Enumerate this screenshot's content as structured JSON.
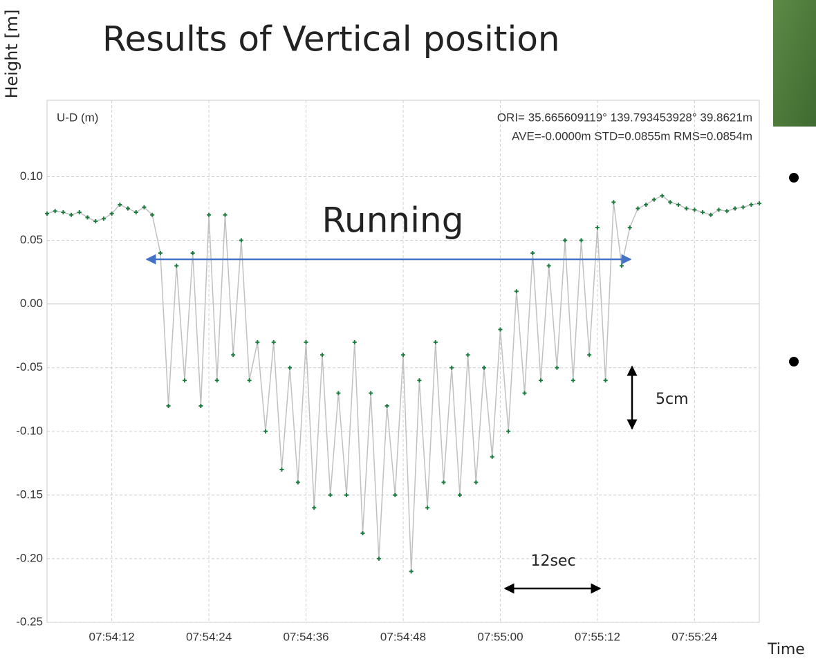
{
  "chart_data": {
    "type": "line",
    "title": "Results of Vertical position",
    "ylabel": "Height [m]",
    "xlabel": "Time",
    "panel_label": "U-D (m)",
    "origin_text": "ORI= 35.665609119° 139.793453928° 39.8621m",
    "stats_text": "AVE=-0.0000m STD=0.0855m RMS=0.0854m",
    "annotations": [
      "Running",
      "5cm",
      "12sec"
    ],
    "line_color": "#c0c0c0",
    "marker_color": "#1e7b3f",
    "grid": true,
    "x": [
      "07:54:04",
      "07:54:05",
      "07:54:06",
      "07:54:07",
      "07:54:08",
      "07:54:09",
      "07:54:10",
      "07:54:11",
      "07:54:12",
      "07:54:13",
      "07:54:14",
      "07:54:15",
      "07:54:16",
      "07:54:17",
      "07:54:18",
      "07:54:19",
      "07:54:20",
      "07:54:21",
      "07:54:22",
      "07:54:23",
      "07:54:24",
      "07:54:25",
      "07:54:26",
      "07:54:27",
      "07:54:28",
      "07:54:29",
      "07:54:30",
      "07:54:31",
      "07:54:32",
      "07:54:33",
      "07:54:34",
      "07:54:35",
      "07:54:36",
      "07:54:37",
      "07:54:38",
      "07:54:39",
      "07:54:40",
      "07:54:41",
      "07:54:42",
      "07:54:43",
      "07:54:44",
      "07:54:45",
      "07:54:46",
      "07:54:47",
      "07:54:48",
      "07:54:49",
      "07:54:50",
      "07:54:51",
      "07:54:52",
      "07:54:53",
      "07:54:54",
      "07:54:55",
      "07:54:56",
      "07:54:57",
      "07:54:58",
      "07:54:59",
      "07:55:00",
      "07:55:01",
      "07:55:02",
      "07:55:03",
      "07:55:04",
      "07:55:05",
      "07:55:06",
      "07:55:07",
      "07:55:08",
      "07:55:09",
      "07:55:10",
      "07:55:11",
      "07:55:12",
      "07:55:13",
      "07:55:14",
      "07:55:15",
      "07:55:16",
      "07:55:17",
      "07:55:18",
      "07:55:19",
      "07:55:20",
      "07:55:21",
      "07:55:22",
      "07:55:23",
      "07:55:24",
      "07:55:25",
      "07:55:26",
      "07:55:27",
      "07:55:28",
      "07:55:29",
      "07:55:30",
      "07:55:31",
      "07:55:32"
    ],
    "values": [
      0.071,
      0.073,
      0.072,
      0.07,
      0.072,
      0.068,
      0.065,
      0.067,
      0.071,
      0.078,
      0.075,
      0.072,
      0.076,
      0.07,
      0.04,
      -0.08,
      0.03,
      -0.06,
      0.04,
      -0.08,
      0.07,
      -0.06,
      0.07,
      -0.04,
      0.05,
      -0.06,
      -0.03,
      -0.1,
      -0.03,
      -0.13,
      -0.05,
      -0.14,
      -0.03,
      -0.16,
      -0.04,
      -0.15,
      -0.07,
      -0.15,
      -0.03,
      -0.18,
      -0.07,
      -0.2,
      -0.08,
      -0.15,
      -0.04,
      -0.21,
      -0.06,
      -0.16,
      -0.03,
      -0.14,
      -0.05,
      -0.15,
      -0.04,
      -0.14,
      -0.05,
      -0.12,
      -0.02,
      -0.1,
      0.01,
      -0.07,
      0.04,
      -0.06,
      0.03,
      -0.05,
      0.05,
      -0.06,
      0.05,
      -0.04,
      0.06,
      -0.06,
      0.08,
      0.03,
      0.06,
      0.075,
      0.078,
      0.082,
      0.085,
      0.08,
      0.078,
      0.075,
      0.074,
      0.072,
      0.07,
      0.074,
      0.073,
      0.075,
      0.076,
      0.078,
      0.079
    ],
    "xlim": [
      "07:54:04",
      "07:55:32"
    ],
    "xticks": [
      "07:54:12",
      "07:54:24",
      "07:54:36",
      "07:54:48",
      "07:55:00",
      "07:55:12",
      "07:55:24"
    ],
    "ylim": [
      -0.25,
      0.16
    ],
    "yticks": [
      {
        "value": 0.1,
        "label": "0.10"
      },
      0.05,
      {
        "value": 0,
        "label": "0.00"
      },
      -0.05,
      {
        "value": -0.1,
        "label": "-0.10"
      },
      -0.15,
      {
        "value": -0.2,
        "label": "-0.20"
      },
      -0.25
    ]
  }
}
